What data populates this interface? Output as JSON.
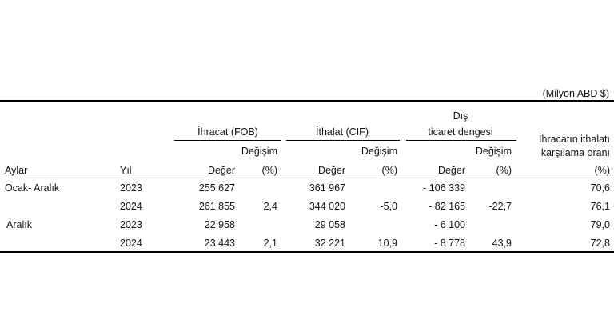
{
  "unit_note": "(Milyon ABD $)",
  "headers": {
    "exports_group": "İhracat (FOB)",
    "imports_group": "İthalat (CIF)",
    "balance_group_line1": "Dış",
    "balance_group_line2": "ticaret dengesi",
    "coverage_line1": "İhracatın ithalatı",
    "coverage_line2": "karşılama oranı",
    "change_label": "Değişim",
    "months": "Aylar",
    "year": "Yıl",
    "value": "Değer",
    "percent": "(%)"
  },
  "rows": [
    {
      "period": "Ocak- Aralık",
      "year": "2023",
      "exp": "255 627",
      "exp_chg": "",
      "imp": "361 967",
      "imp_chg": "",
      "bal": "- 106 339",
      "bal_chg": "",
      "cov": "70,6"
    },
    {
      "period": "",
      "year": "2024",
      "exp": "261 855",
      "exp_chg": "2,4",
      "imp": "344 020",
      "imp_chg": "-5,0",
      "bal": "- 82 165",
      "bal_chg": "-22,7",
      "cov": "76,1"
    },
    {
      "period": "Aralık",
      "year": "2023",
      "exp": "22 958",
      "exp_chg": "",
      "imp": "29 058",
      "imp_chg": "",
      "bal": "- 6 100",
      "bal_chg": "",
      "cov": "79,0"
    },
    {
      "period": "",
      "year": "2024",
      "exp": "23 443",
      "exp_chg": "2,1",
      "imp": "32 221",
      "imp_chg": "10,9",
      "bal": "- 8 778",
      "bal_chg": "43,9",
      "cov": "72,8"
    }
  ]
}
